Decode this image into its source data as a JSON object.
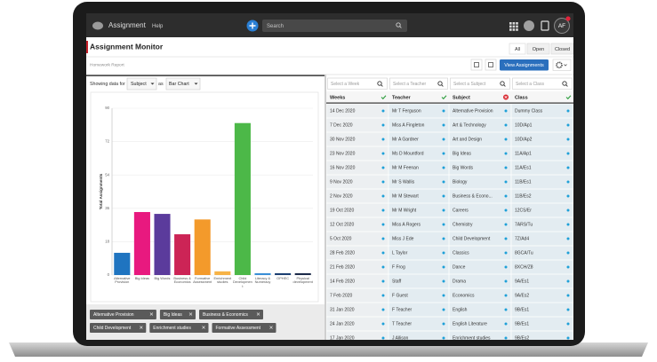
{
  "nav": {
    "app_name": "Assignment",
    "help": "Help",
    "search_placeholder": "Search",
    "avatar": "AF"
  },
  "header": {
    "title": "Assignment Monitor",
    "subtitle": "Homework Report",
    "status_tabs": [
      "All",
      "Open",
      "Closed"
    ],
    "view_button": "View Assignments"
  },
  "filters": {
    "prefix": "Showing data for",
    "group_by": "Subject",
    "joiner": "as",
    "chart_kind": "Bar Chart"
  },
  "chart_data": {
    "type": "bar",
    "y_label": "Total Assignments",
    "categories": [
      "Alternative Provision",
      "Big Ideas",
      "Big Words",
      "Business & Economics",
      "Formative Assessment",
      "Enrichment studies",
      "Child Development",
      "Literacy & Numeracy",
      "OPHEC",
      "Physical development"
    ],
    "values": [
      12,
      34,
      33,
      22,
      30,
      2,
      82,
      1,
      1,
      1
    ],
    "colors": [
      "#1f74c0",
      "#e8197f",
      "#5b3b9c",
      "#cc2456",
      "#f39a2b",
      "#f6b347",
      "#4cb848",
      "#3a8fd6",
      "#1c3f72",
      "#1c2b4a"
    ],
    "ylim": [
      0,
      90
    ],
    "yticks": [
      0,
      18,
      36,
      54,
      72,
      90
    ],
    "grid": true
  },
  "chips": [
    "Alternative Provision",
    "Big Ideas",
    "Business & Economics",
    "Child Development",
    "Enrichment studies",
    "Formative Assessment"
  ],
  "table": {
    "search_placeholders": [
      "Select a Week",
      "Select a Teacher",
      "Select a Subject",
      "Select a Class"
    ],
    "columns": [
      "Weeks",
      "Teacher",
      "Subject",
      "Class"
    ],
    "rows": [
      [
        "14 Dec 2020",
        "Mr T Ferguson",
        "Alternative Provision",
        "Dummy Class"
      ],
      [
        "7 Dec 2020",
        "Miss A Fingleton",
        "Art & Technology",
        "10D/Ap1"
      ],
      [
        "30 Nov 2020",
        "Mr A Gardner",
        "Art and Design",
        "10D/Ap2"
      ],
      [
        "23 Nov 2020",
        "Ms D Mountford",
        "Big Ideas",
        "11A/Ap1"
      ],
      [
        "16 Nov 2020",
        "Mr M Feenan",
        "Big Words",
        "11A/Es1"
      ],
      [
        "9 Nov 2020",
        "Mr S Wallis",
        "Biology",
        "11B/Es1"
      ],
      [
        "2 Nov 2020",
        "Mr M Stewart",
        "Business & Econo...",
        "11B/Es2"
      ],
      [
        "19 Oct 2020",
        "Mr M Wright",
        "Careers",
        "12CS/Er"
      ],
      [
        "12 Oct 2020",
        "Miss A Rogers",
        "Chemistry",
        "7ARS/Tu"
      ],
      [
        "5 Oct 2020",
        "Miss J Ede",
        "Child Development",
        "7Z/Ad4"
      ],
      [
        "28 Feb 2020",
        "L Taylor",
        "Classics",
        "8GCA/Tu"
      ],
      [
        "21 Feb 2020",
        "F Frog",
        "Dance",
        "8XCH/Z8"
      ],
      [
        "14 Feb 2020",
        "Staff",
        "Drama",
        "9A/Es1"
      ],
      [
        "7 Feb 2020",
        "F Guest",
        "Economics",
        "9A/Es2"
      ],
      [
        "31 Jan 2020",
        "F Teacher",
        "English",
        "9B/Es1"
      ],
      [
        "24 Jan 2020",
        "T Teacher",
        "English Literature",
        "9B/Es1"
      ],
      [
        "17 Jan 2020",
        "J Allison",
        "Enrichment studies",
        "9B/Es2"
      ]
    ]
  }
}
